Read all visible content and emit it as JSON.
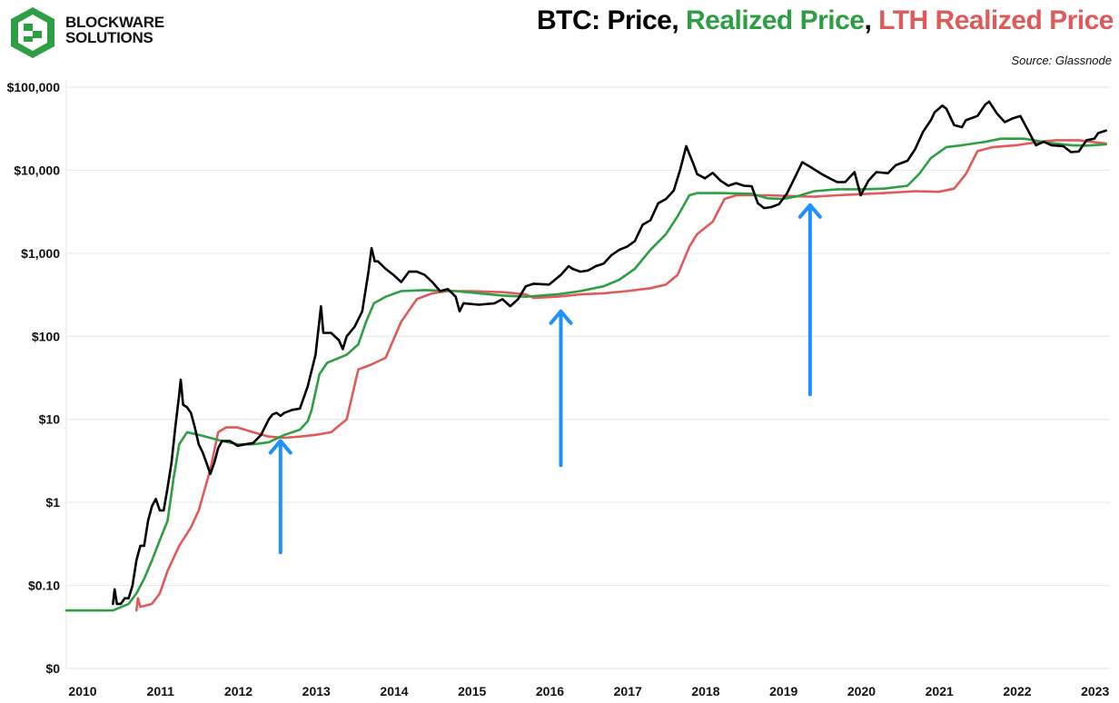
{
  "header": {
    "brand_line1": "BLOCKWARE",
    "brand_line2": "SOLUTIONS",
    "title_part1": "BTC: Price",
    "title_sep1": ", ",
    "title_part2": "Realized Price",
    "title_sep2": ",  ",
    "title_part3": "LTH Realized Price",
    "source": "Source: Glassnode"
  },
  "colors": {
    "price": "#000000",
    "realized": "#2e9e44",
    "lth": "#e05a5a",
    "arrow": "#1e90ff",
    "logo": "#2e9e44"
  },
  "chart_data": {
    "type": "line",
    "y_scale": "log",
    "ylim": [
      0.01,
      100000
    ],
    "xlim": [
      2010.0,
      2023.4
    ],
    "y_ticks": [
      {
        "value": 0.01,
        "label": "$0"
      },
      {
        "value": 0.1,
        "label": "$0.10"
      },
      {
        "value": 1,
        "label": "$1"
      },
      {
        "value": 10,
        "label": "$10"
      },
      {
        "value": 100,
        "label": "$100"
      },
      {
        "value": 1000,
        "label": "$1,000"
      },
      {
        "value": 10000,
        "label": "$10,000"
      },
      {
        "value": 100000,
        "label": "$100,000"
      }
    ],
    "x_ticks": [
      {
        "value": 2010.0,
        "label": "2010"
      },
      {
        "value": 2011.0,
        "label": "2011"
      },
      {
        "value": 2012.0,
        "label": "2012"
      },
      {
        "value": 2013.0,
        "label": "2013"
      },
      {
        "value": 2014.0,
        "label": "2014"
      },
      {
        "value": 2015.0,
        "label": "2015"
      },
      {
        "value": 2016.0,
        "label": "2016"
      },
      {
        "value": 2017.0,
        "label": "2017"
      },
      {
        "value": 2018.0,
        "label": "2018"
      },
      {
        "value": 2019.0,
        "label": "2019"
      },
      {
        "value": 2020.0,
        "label": "2020"
      },
      {
        "value": 2021.0,
        "label": "2021"
      },
      {
        "value": 2022.0,
        "label": "2022"
      },
      {
        "value": 2023.0,
        "label": "2023"
      }
    ],
    "grid": true,
    "series": [
      {
        "name": "BTC: Price",
        "key": "price",
        "points": [
          [
            2010.6,
            0.06
          ],
          [
            2010.62,
            0.09
          ],
          [
            2010.65,
            0.06
          ],
          [
            2010.7,
            0.06
          ],
          [
            2010.75,
            0.07
          ],
          [
            2010.8,
            0.07
          ],
          [
            2010.85,
            0.1
          ],
          [
            2010.9,
            0.2
          ],
          [
            2010.95,
            0.3
          ],
          [
            2011.0,
            0.3
          ],
          [
            2011.05,
            0.6
          ],
          [
            2011.1,
            0.9
          ],
          [
            2011.15,
            1.1
          ],
          [
            2011.2,
            0.8
          ],
          [
            2011.25,
            0.8
          ],
          [
            2011.3,
            1.5
          ],
          [
            2011.35,
            3
          ],
          [
            2011.4,
            8
          ],
          [
            2011.45,
            20
          ],
          [
            2011.47,
            30
          ],
          [
            2011.5,
            15
          ],
          [
            2011.55,
            14
          ],
          [
            2011.6,
            12
          ],
          [
            2011.65,
            8
          ],
          [
            2011.7,
            5
          ],
          [
            2011.75,
            4
          ],
          [
            2011.8,
            3
          ],
          [
            2011.85,
            2.2
          ],
          [
            2011.9,
            3
          ],
          [
            2011.95,
            4.5
          ],
          [
            2012.0,
            5.5
          ],
          [
            2012.1,
            5.5
          ],
          [
            2012.2,
            4.8
          ],
          [
            2012.3,
            5
          ],
          [
            2012.4,
            5.2
          ],
          [
            2012.5,
            6.5
          ],
          [
            2012.6,
            10
          ],
          [
            2012.65,
            11.5
          ],
          [
            2012.7,
            12
          ],
          [
            2012.75,
            11
          ],
          [
            2012.8,
            12
          ],
          [
            2012.9,
            13
          ],
          [
            2013.0,
            13.5
          ],
          [
            2013.1,
            25
          ],
          [
            2013.2,
            60
          ],
          [
            2013.27,
            230
          ],
          [
            2013.3,
            110
          ],
          [
            2013.4,
            110
          ],
          [
            2013.5,
            90
          ],
          [
            2013.55,
            70
          ],
          [
            2013.6,
            100
          ],
          [
            2013.7,
            130
          ],
          [
            2013.8,
            200
          ],
          [
            2013.88,
            600
          ],
          [
            2013.92,
            1150
          ],
          [
            2013.96,
            800
          ],
          [
            2014.0,
            800
          ],
          [
            2014.1,
            650
          ],
          [
            2014.2,
            550
          ],
          [
            2014.3,
            450
          ],
          [
            2014.4,
            600
          ],
          [
            2014.5,
            600
          ],
          [
            2014.6,
            550
          ],
          [
            2014.7,
            450
          ],
          [
            2014.8,
            350
          ],
          [
            2014.9,
            370
          ],
          [
            2015.0,
            300
          ],
          [
            2015.05,
            200
          ],
          [
            2015.1,
            250
          ],
          [
            2015.3,
            240
          ],
          [
            2015.5,
            250
          ],
          [
            2015.6,
            280
          ],
          [
            2015.7,
            230
          ],
          [
            2015.8,
            280
          ],
          [
            2015.9,
            400
          ],
          [
            2016.0,
            430
          ],
          [
            2016.2,
            420
          ],
          [
            2016.35,
            550
          ],
          [
            2016.45,
            700
          ],
          [
            2016.5,
            650
          ],
          [
            2016.6,
            600
          ],
          [
            2016.7,
            620
          ],
          [
            2016.8,
            700
          ],
          [
            2016.9,
            750
          ],
          [
            2017.0,
            950
          ],
          [
            2017.1,
            1100
          ],
          [
            2017.2,
            1200
          ],
          [
            2017.3,
            1400
          ],
          [
            2017.4,
            2200
          ],
          [
            2017.5,
            2500
          ],
          [
            2017.6,
            4000
          ],
          [
            2017.7,
            4500
          ],
          [
            2017.8,
            5700
          ],
          [
            2017.88,
            10000
          ],
          [
            2017.96,
            19500
          ],
          [
            2018.05,
            12000
          ],
          [
            2018.1,
            9000
          ],
          [
            2018.2,
            8000
          ],
          [
            2018.3,
            9300
          ],
          [
            2018.4,
            7500
          ],
          [
            2018.5,
            6500
          ],
          [
            2018.6,
            7000
          ],
          [
            2018.7,
            6500
          ],
          [
            2018.8,
            6400
          ],
          [
            2018.88,
            4000
          ],
          [
            2018.96,
            3500
          ],
          [
            2019.05,
            3600
          ],
          [
            2019.15,
            3900
          ],
          [
            2019.25,
            5200
          ],
          [
            2019.35,
            8000
          ],
          [
            2019.45,
            12500
          ],
          [
            2019.55,
            11000
          ],
          [
            2019.7,
            9000
          ],
          [
            2019.8,
            8000
          ],
          [
            2019.9,
            7200
          ],
          [
            2020.0,
            7200
          ],
          [
            2020.12,
            9500
          ],
          [
            2020.2,
            5000
          ],
          [
            2020.3,
            7500
          ],
          [
            2020.4,
            9500
          ],
          [
            2020.55,
            9200
          ],
          [
            2020.65,
            11500
          ],
          [
            2020.8,
            13000
          ],
          [
            2020.9,
            18000
          ],
          [
            2021.0,
            29000
          ],
          [
            2021.1,
            40000
          ],
          [
            2021.15,
            50000
          ],
          [
            2021.25,
            60000
          ],
          [
            2021.3,
            55000
          ],
          [
            2021.4,
            35000
          ],
          [
            2021.5,
            33000
          ],
          [
            2021.55,
            40000
          ],
          [
            2021.7,
            45000
          ],
          [
            2021.8,
            62000
          ],
          [
            2021.85,
            67000
          ],
          [
            2021.95,
            48000
          ],
          [
            2022.05,
            38000
          ],
          [
            2022.15,
            42000
          ],
          [
            2022.25,
            45000
          ],
          [
            2022.35,
            30000
          ],
          [
            2022.45,
            20000
          ],
          [
            2022.55,
            22000
          ],
          [
            2022.65,
            20000
          ],
          [
            2022.8,
            19500
          ],
          [
            2022.9,
            16500
          ],
          [
            2023.0,
            16800
          ],
          [
            2023.1,
            23000
          ],
          [
            2023.2,
            24000
          ],
          [
            2023.25,
            28000
          ],
          [
            2023.35,
            30000
          ]
        ]
      },
      {
        "name": "Realized Price",
        "key": "realized",
        "points": [
          [
            2010.0,
            0.05
          ],
          [
            2010.6,
            0.05
          ],
          [
            2010.8,
            0.06
          ],
          [
            2010.9,
            0.08
          ],
          [
            2011.0,
            0.12
          ],
          [
            2011.1,
            0.2
          ],
          [
            2011.2,
            0.35
          ],
          [
            2011.3,
            0.6
          ],
          [
            2011.38,
            2
          ],
          [
            2011.45,
            5
          ],
          [
            2011.55,
            7
          ],
          [
            2011.7,
            6.5
          ],
          [
            2011.9,
            5.8
          ],
          [
            2012.0,
            5.5
          ],
          [
            2012.2,
            5.0
          ],
          [
            2012.4,
            5.0
          ],
          [
            2012.6,
            5.3
          ],
          [
            2012.8,
            6.5
          ],
          [
            2013.0,
            7.5
          ],
          [
            2013.1,
            9.5
          ],
          [
            2013.15,
            13
          ],
          [
            2013.25,
            35
          ],
          [
            2013.35,
            48
          ],
          [
            2013.6,
            60
          ],
          [
            2013.75,
            80
          ],
          [
            2013.85,
            150
          ],
          [
            2013.95,
            250
          ],
          [
            2014.1,
            300
          ],
          [
            2014.3,
            350
          ],
          [
            2014.6,
            360
          ],
          [
            2015.0,
            350
          ],
          [
            2015.3,
            330
          ],
          [
            2015.6,
            310
          ],
          [
            2015.9,
            300
          ],
          [
            2016.0,
            305
          ],
          [
            2016.3,
            320
          ],
          [
            2016.6,
            350
          ],
          [
            2016.9,
            400
          ],
          [
            2017.1,
            480
          ],
          [
            2017.3,
            650
          ],
          [
            2017.5,
            1100
          ],
          [
            2017.7,
            1700
          ],
          [
            2017.85,
            2800
          ],
          [
            2018.0,
            5000
          ],
          [
            2018.1,
            5300
          ],
          [
            2018.4,
            5300
          ],
          [
            2018.8,
            5200
          ],
          [
            2019.0,
            4600
          ],
          [
            2019.2,
            4500
          ],
          [
            2019.4,
            4900
          ],
          [
            2019.6,
            5600
          ],
          [
            2019.9,
            5900
          ],
          [
            2020.2,
            5900
          ],
          [
            2020.5,
            6000
          ],
          [
            2020.8,
            6500
          ],
          [
            2020.95,
            9000
          ],
          [
            2021.1,
            14000
          ],
          [
            2021.3,
            19000
          ],
          [
            2021.5,
            20000
          ],
          [
            2021.8,
            22000
          ],
          [
            2022.0,
            24000
          ],
          [
            2022.3,
            24000
          ],
          [
            2022.6,
            21500
          ],
          [
            2022.9,
            20000
          ],
          [
            2023.1,
            19800
          ],
          [
            2023.35,
            20500
          ]
        ]
      },
      {
        "name": "LTH Realized Price",
        "key": "lth",
        "points": [
          [
            2010.9,
            0.05
          ],
          [
            2010.92,
            0.07
          ],
          [
            2010.95,
            0.055
          ],
          [
            2011.1,
            0.06
          ],
          [
            2011.2,
            0.08
          ],
          [
            2011.3,
            0.15
          ],
          [
            2011.45,
            0.3
          ],
          [
            2011.6,
            0.5
          ],
          [
            2011.7,
            0.8
          ],
          [
            2011.85,
            2.5
          ],
          [
            2011.95,
            7
          ],
          [
            2012.05,
            8
          ],
          [
            2012.2,
            8
          ],
          [
            2012.4,
            7
          ],
          [
            2012.6,
            6.2
          ],
          [
            2012.8,
            6
          ],
          [
            2013.0,
            6.2
          ],
          [
            2013.2,
            6.5
          ],
          [
            2013.4,
            7
          ],
          [
            2013.6,
            10
          ],
          [
            2013.75,
            40
          ],
          [
            2013.9,
            45
          ],
          [
            2014.1,
            55
          ],
          [
            2014.3,
            150
          ],
          [
            2014.5,
            280
          ],
          [
            2014.7,
            330
          ],
          [
            2014.9,
            350
          ],
          [
            2015.2,
            350
          ],
          [
            2015.6,
            340
          ],
          [
            2015.9,
            320
          ],
          [
            2016.0,
            290
          ],
          [
            2016.3,
            300
          ],
          [
            2016.6,
            320
          ],
          [
            2016.9,
            330
          ],
          [
            2017.2,
            350
          ],
          [
            2017.5,
            380
          ],
          [
            2017.7,
            420
          ],
          [
            2017.85,
            550
          ],
          [
            2018.0,
            1200
          ],
          [
            2018.1,
            1700
          ],
          [
            2018.3,
            2400
          ],
          [
            2018.45,
            4500
          ],
          [
            2018.6,
            5000
          ],
          [
            2018.8,
            5000
          ],
          [
            2019.0,
            5000
          ],
          [
            2019.3,
            4900
          ],
          [
            2019.6,
            4800
          ],
          [
            2019.9,
            5000
          ],
          [
            2020.1,
            5100
          ],
          [
            2020.5,
            5300
          ],
          [
            2020.9,
            5600
          ],
          [
            2021.2,
            5500
          ],
          [
            2021.4,
            6000
          ],
          [
            2021.55,
            9000
          ],
          [
            2021.7,
            17000
          ],
          [
            2021.9,
            19000
          ],
          [
            2022.2,
            20000
          ],
          [
            2022.5,
            22000
          ],
          [
            2022.7,
            23000
          ],
          [
            2023.0,
            23000
          ],
          [
            2023.35,
            21000
          ]
        ]
      }
    ],
    "annotations": [
      {
        "type": "arrow",
        "x": 2012.75,
        "y_from": 0.25,
        "y_to": 5.5
      },
      {
        "type": "arrow",
        "x": 2016.35,
        "y_from": 2.8,
        "y_to": 200
      },
      {
        "type": "arrow",
        "x": 2019.55,
        "y_from": 20,
        "y_to": 3800
      }
    ]
  }
}
